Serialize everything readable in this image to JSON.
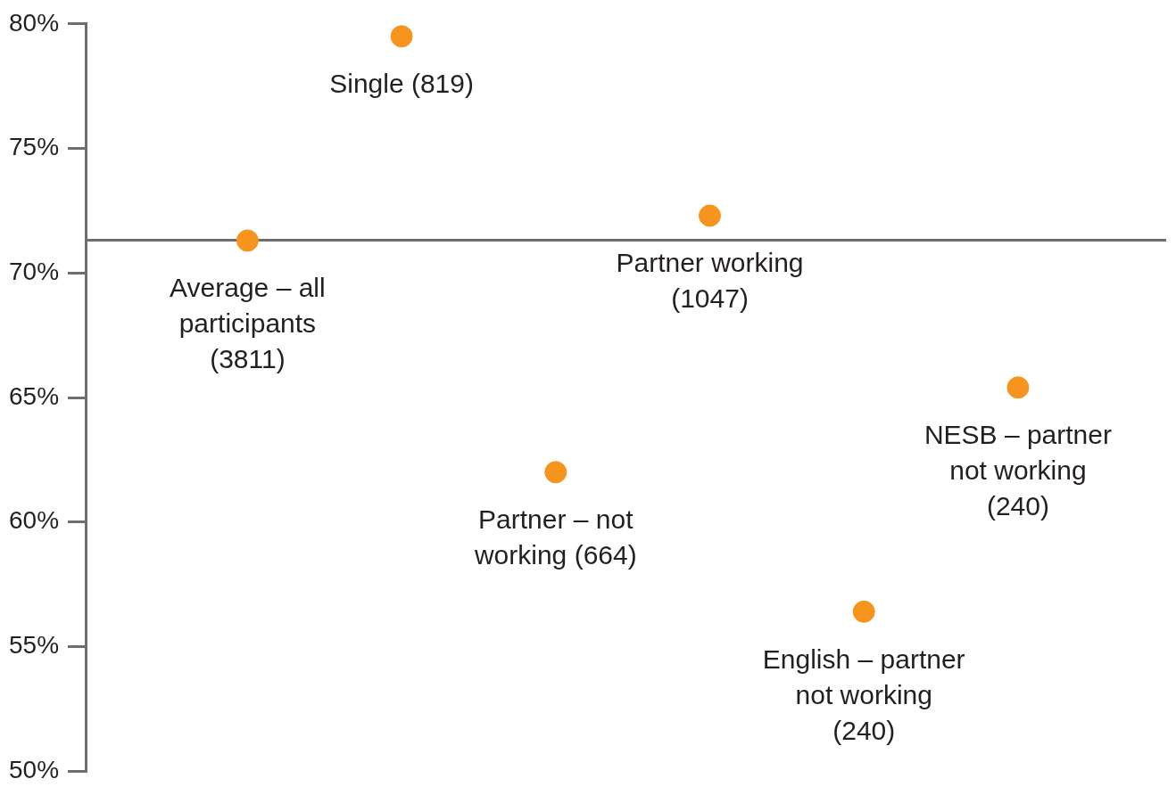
{
  "chart_data": {
    "type": "scatter",
    "categories": [
      "Average – all participants (3811)",
      "Single (819)",
      "Partner – not working (664)",
      "Partner working (1047)",
      "English – partner not working (240)",
      "NESB – partner not working (240)"
    ],
    "series": [
      {
        "color": "#f7941d",
        "values": [
          71.3,
          79.5,
          62.0,
          72.3,
          56.4,
          65.4
        ]
      }
    ],
    "ylim": [
      50,
      80
    ],
    "yticks": [
      {
        "value": 50,
        "label": "50%"
      },
      {
        "value": 55,
        "label": "55%"
      },
      {
        "value": 60,
        "label": "60%"
      },
      {
        "value": 65,
        "label": "65%"
      },
      {
        "value": 70,
        "label": "70%"
      },
      {
        "value": 75,
        "label": "75%"
      },
      {
        "value": 80,
        "label": "80%"
      }
    ],
    "ref_lines": [
      {
        "axis": "y",
        "value": 71.3,
        "color": "#6d6e71"
      }
    ],
    "grid": false,
    "legend": false,
    "marker": "circle"
  }
}
